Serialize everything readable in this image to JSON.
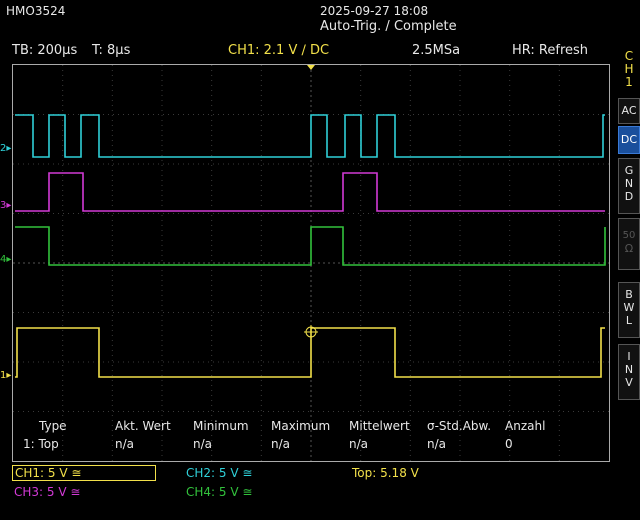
{
  "device": {
    "model": "HMO3524"
  },
  "datetime": "2025-09-27 18:08",
  "trigger_status": "Auto-Trig. / Complete",
  "header": {
    "timebase": "TB: 200µs",
    "trigger_time": "T: 8µs",
    "trigger": "CH1: 2.1 V ∕ DC",
    "sample_rate": "2.5MSa",
    "acq_mode": "HR: Refresh"
  },
  "side_menu": {
    "channel": [
      "C",
      "H",
      "1"
    ],
    "buttons": [
      {
        "letters": [
          "AC"
        ],
        "active": false,
        "dim": false
      },
      {
        "letters": [
          "DC"
        ],
        "active": true,
        "dim": false
      },
      {
        "letters": [
          "G",
          "N",
          "D"
        ],
        "active": false,
        "dim": false
      },
      {
        "letters": [
          "50",
          "Ω"
        ],
        "active": false,
        "dim": true
      },
      {
        "letters": [
          "B",
          "W",
          "L"
        ],
        "active": false,
        "dim": false
      },
      {
        "letters": [
          "I",
          "N",
          "V"
        ],
        "active": false,
        "dim": false
      }
    ]
  },
  "channel_markers": [
    "2",
    "3",
    "4",
    "1"
  ],
  "measurements": {
    "headers": [
      "Type",
      "Akt. Wert",
      "Minimum",
      "Maximum",
      "Mittelwert",
      "σ-Std.Abw.",
      "Anzahl"
    ],
    "row": [
      "1: Top",
      "n/a",
      "n/a",
      "n/a",
      "n/a",
      "n/a",
      "0"
    ]
  },
  "channels": [
    {
      "label": "CH1: 5 V ≅",
      "color": "#f2e04a"
    },
    {
      "label": "CH2: 5 V ≅",
      "color": "#2fd0d8"
    },
    {
      "label": "CH3: 5 V ≅",
      "color": "#d23ad6"
    },
    {
      "label": "CH4: 5 V ≅",
      "color": "#32c23c"
    }
  ],
  "measurement_result": "Top: 5.18 V",
  "colors": {
    "ch1": "#f2e04a",
    "ch2": "#2fd0d8",
    "ch3": "#d23ad6",
    "ch4": "#32c23c",
    "grid": "#3a3a3a"
  }
}
